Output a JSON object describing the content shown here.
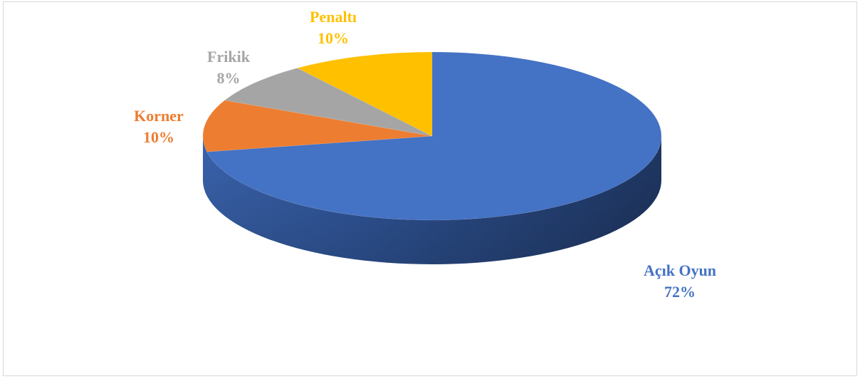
{
  "chart_data": {
    "type": "pie",
    "title": "",
    "slices": [
      {
        "label": "Açık Oyun",
        "value": 72,
        "value_label": "72%",
        "color": "#4472C4"
      },
      {
        "label": "Korner",
        "value": 10,
        "value_label": "10%",
        "color": "#ED7D31"
      },
      {
        "label": "Frikik",
        "value": 8,
        "value_label": "8%",
        "color": "#A5A5A5"
      },
      {
        "label": "Penaltı",
        "value": 10,
        "value_label": "10%",
        "color": "#FFC000"
      }
    ],
    "style": "3d",
    "legend": "none"
  }
}
